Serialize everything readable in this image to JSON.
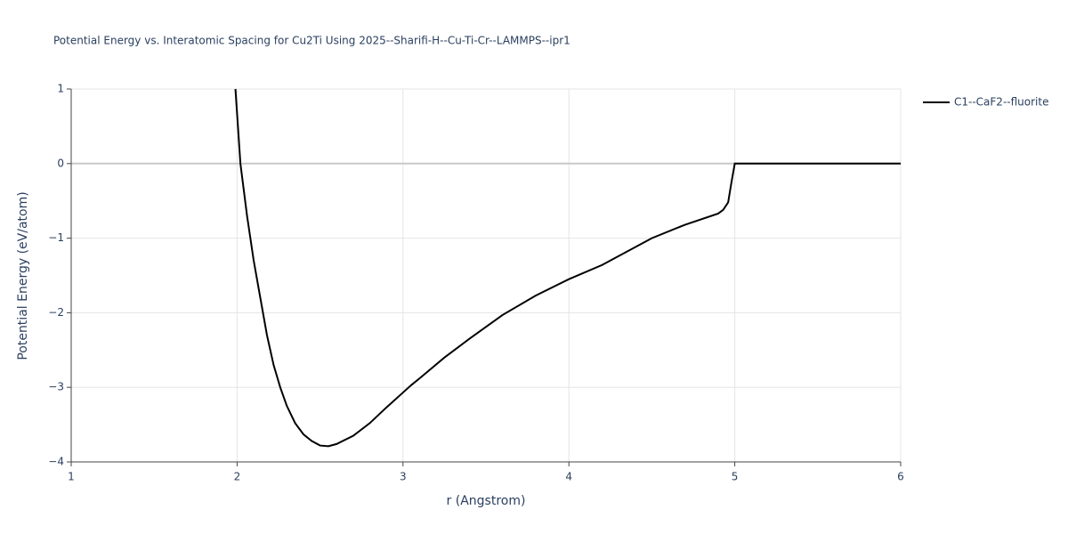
{
  "chart_data": {
    "type": "line",
    "title": "Potential Energy vs. Interatomic Spacing for Cu2Ti Using 2025--Sharifi-H--Cu-Ti-Cr--LAMMPS--ipr1",
    "x_label": "r (Angstrom)",
    "y_label": "Potential Energy (eV/atom)",
    "x": [
      1.99,
      2.02,
      2.06,
      2.1,
      2.14,
      2.18,
      2.22,
      2.26,
      2.3,
      2.35,
      2.4,
      2.45,
      2.5,
      2.55,
      2.6,
      2.7,
      2.8,
      2.9,
      3.0,
      3.05,
      3.1,
      3.25,
      3.4,
      3.6,
      3.8,
      4.0,
      4.2,
      4.5,
      4.7,
      4.9,
      4.93,
      4.96,
      4.98,
      5.0,
      6.0
    ],
    "series": [
      {
        "name": "C1--CaF2--fluorite",
        "color": "#000000",
        "values": [
          1.0,
          0.0,
          -0.7,
          -1.3,
          -1.8,
          -2.3,
          -2.7,
          -3.0,
          -3.25,
          -3.48,
          -3.63,
          -3.72,
          -3.78,
          -3.79,
          -3.76,
          -3.65,
          -3.48,
          -3.27,
          -3.07,
          -2.97,
          -2.88,
          -2.6,
          -2.35,
          -2.03,
          -1.77,
          -1.55,
          -1.36,
          -1.0,
          -0.82,
          -0.67,
          -0.62,
          -0.52,
          -0.25,
          0.0,
          0.0
        ]
      }
    ],
    "xlim": [
      1,
      6
    ],
    "xticks": [
      1,
      2,
      3,
      4,
      5,
      6
    ],
    "ylim": [
      -4,
      1
    ],
    "yticks": [
      {
        "value": -4,
        "label": "−4"
      },
      {
        "value": -3,
        "label": "−3"
      },
      {
        "value": -2,
        "label": "−2"
      },
      {
        "value": -1,
        "label": "−1"
      },
      0,
      1
    ],
    "grid": true
  }
}
